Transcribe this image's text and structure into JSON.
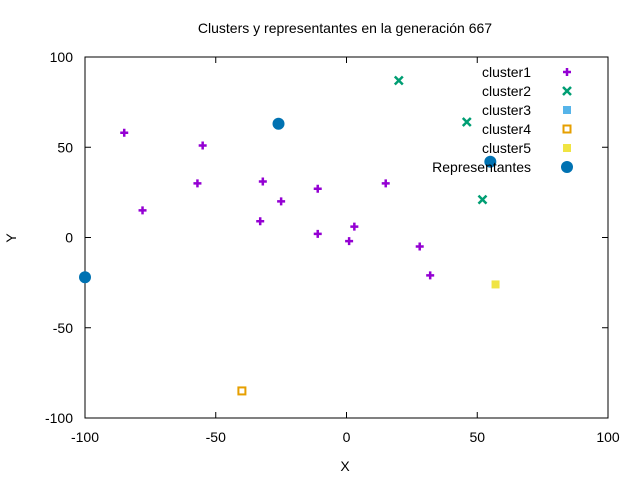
{
  "chart_data": {
    "type": "scatter",
    "title": "Clusters y representantes en la generación 667",
    "xlabel": "X",
    "ylabel": "Y",
    "xlim": [
      -100,
      100
    ],
    "ylim": [
      -100,
      100
    ],
    "xticks": [
      -100,
      -50,
      0,
      50,
      100
    ],
    "yticks": [
      -100,
      -50,
      0,
      50,
      100
    ],
    "xtick_labels": [
      "-100",
      "-50",
      "0",
      "50",
      "100"
    ],
    "ytick_labels": [
      "-100",
      "-50",
      "0",
      "50",
      "100"
    ],
    "grid": false,
    "legend_position": "top-right",
    "series": [
      {
        "name": "cluster1",
        "marker": "plus",
        "color": "#9400d3",
        "points": [
          [
            -85,
            58
          ],
          [
            -55,
            51
          ],
          [
            -57,
            30
          ],
          [
            -78,
            15
          ],
          [
            -32,
            31
          ],
          [
            -25,
            20
          ],
          [
            -33,
            9
          ],
          [
            -11,
            27
          ],
          [
            -11,
            2
          ],
          [
            15,
            30
          ],
          [
            3,
            6
          ],
          [
            1,
            -2
          ],
          [
            28,
            -5
          ],
          [
            32,
            -21
          ]
        ]
      },
      {
        "name": "cluster2",
        "marker": "cross",
        "color": "#009e73",
        "points": [
          [
            20,
            87
          ],
          [
            46,
            64
          ],
          [
            52,
            21
          ]
        ]
      },
      {
        "name": "cluster3",
        "marker": "filled-square",
        "color": "#56b4e9",
        "points": []
      },
      {
        "name": "cluster4",
        "marker": "open-square",
        "color": "#e69f00",
        "points": [
          [
            -40,
            -85
          ]
        ]
      },
      {
        "name": "cluster5",
        "marker": "filled-square",
        "color": "#f0e442",
        "points": [
          [
            57,
            -26
          ]
        ]
      },
      {
        "name": "Representantes",
        "marker": "filled-circle",
        "color": "#0072b2",
        "points": [
          [
            -26,
            63
          ],
          [
            55,
            42
          ],
          [
            -100,
            -22
          ]
        ]
      }
    ]
  }
}
